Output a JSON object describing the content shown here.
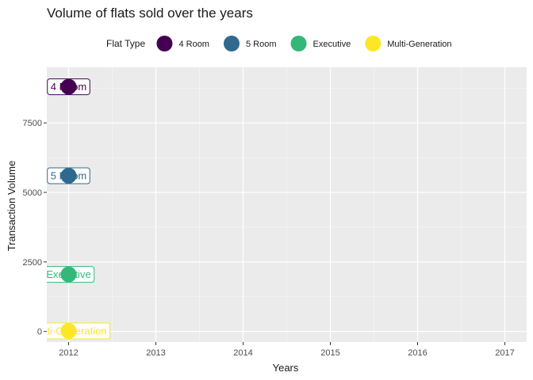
{
  "chart_data": {
    "type": "scatter",
    "title": "Volume of flats sold over the years",
    "xlabel": "Years",
    "ylabel": "Transaction Volume",
    "xlim": [
      2011.75,
      2017.25
    ],
    "ylim": [
      -380,
      9500
    ],
    "x_ticks": [
      2012,
      2013,
      2014,
      2015,
      2016,
      2017
    ],
    "y_ticks": [
      0,
      2500,
      5000,
      7500
    ],
    "y_tick_labels": [
      "0",
      "2500",
      "5000",
      "7500"
    ],
    "x_tick_labels": [
      "2012",
      "2013",
      "2014",
      "2015",
      "2016",
      "2017"
    ],
    "grid": true,
    "legend": {
      "title": "Flat Type",
      "position": "top"
    },
    "series": [
      {
        "name": "4 Room",
        "color": "#440154",
        "label": "4 Room",
        "points": [
          {
            "x": 2012,
            "y": 8800
          }
        ]
      },
      {
        "name": "5 Room",
        "color": "#31688e",
        "label": "5 Room",
        "points": [
          {
            "x": 2012,
            "y": 5600
          }
        ]
      },
      {
        "name": "Executive",
        "color": "#35b779",
        "label": "Executive",
        "points": [
          {
            "x": 2012,
            "y": 2050
          }
        ]
      },
      {
        "name": "Multi-Generation",
        "color": "#fde725",
        "label": "Multi-Generation",
        "points": [
          {
            "x": 2012,
            "y": 20
          }
        ]
      }
    ]
  }
}
